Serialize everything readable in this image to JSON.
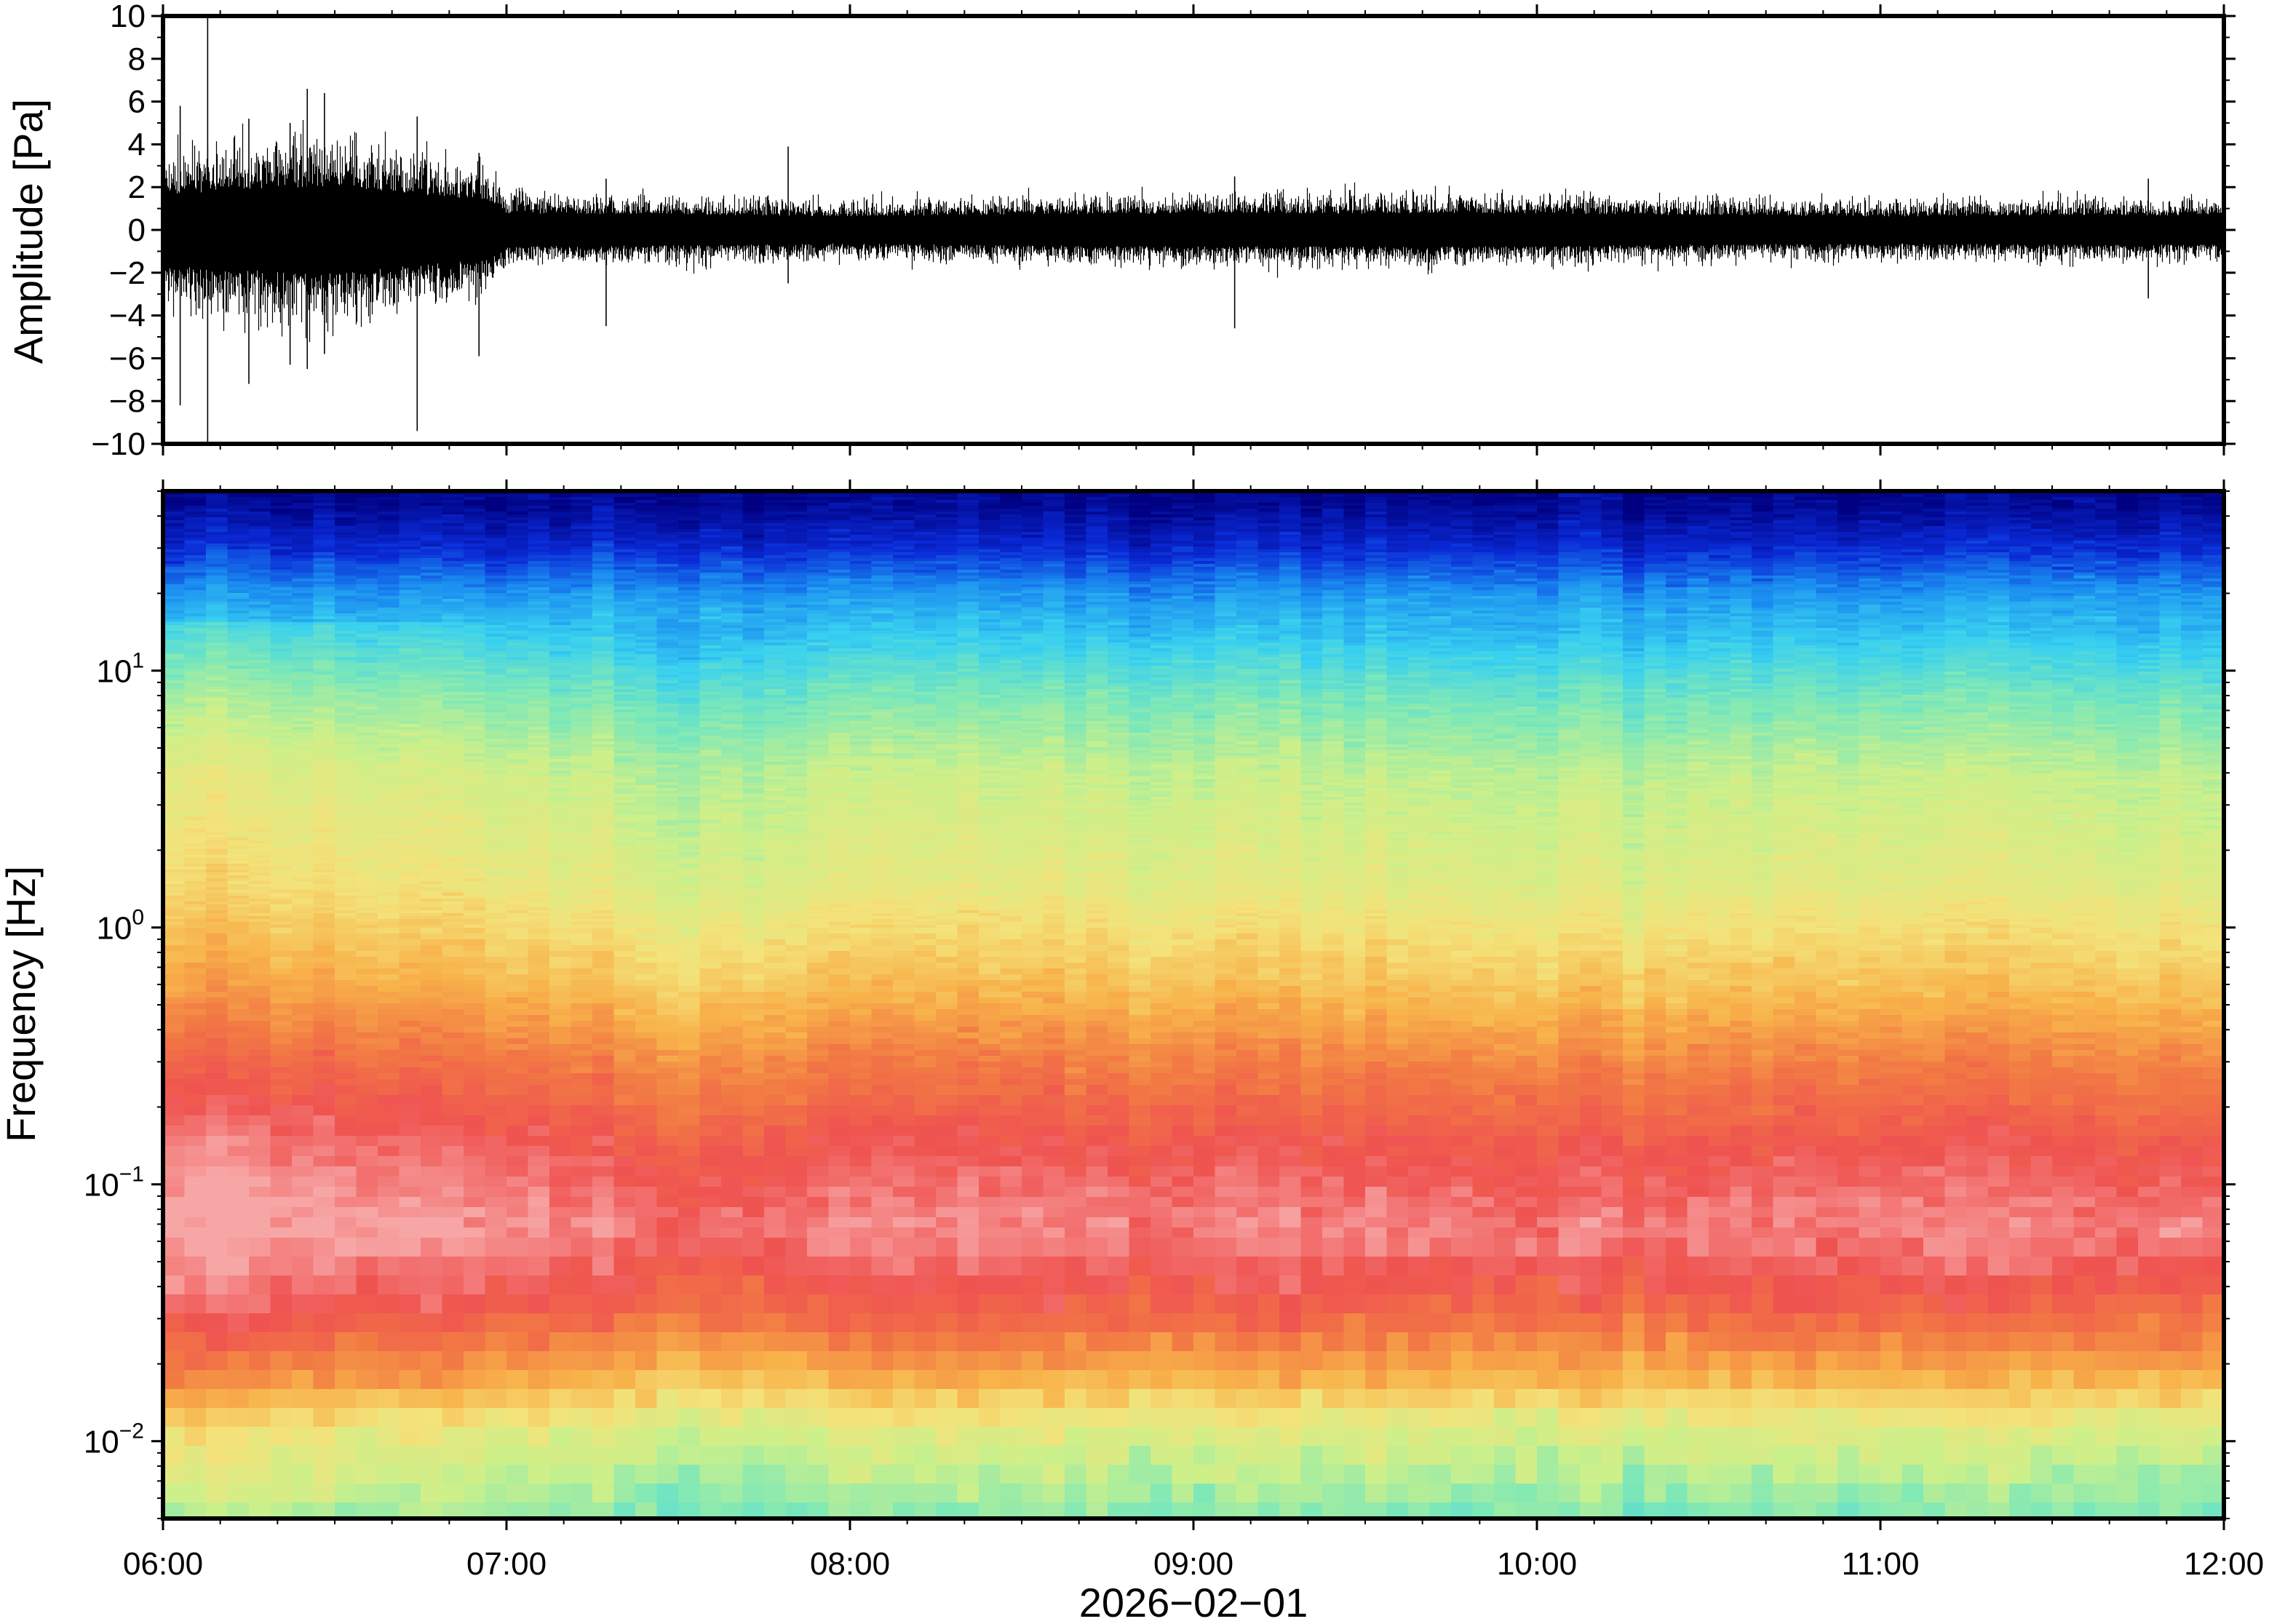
{
  "chart_data": [
    {
      "type": "line",
      "name": "waveform",
      "ylabel": "Amplitude [Pa]",
      "ylim": [
        -10,
        10
      ],
      "xlim": [
        "06:00",
        "12:00"
      ],
      "yticks": [
        {
          "value": 10,
          "label": "10"
        },
        {
          "value": 8,
          "label": "8"
        },
        {
          "value": 6,
          "label": "6"
        },
        {
          "value": 4,
          "label": "4"
        },
        {
          "value": 2,
          "label": "2"
        },
        {
          "value": 0,
          "label": "0"
        },
        {
          "value": -2,
          "label": "−2"
        },
        {
          "value": -4,
          "label": "−4"
        },
        {
          "value": -6,
          "label": "−6"
        },
        {
          "value": -8,
          "label": "−8"
        },
        {
          "value": -10,
          "label": "−10"
        }
      ],
      "grid": false,
      "envelope": [
        {
          "t": 0.0,
          "a": 3.6
        },
        {
          "t": 0.25,
          "a": 4.2
        },
        {
          "t": 0.5,
          "a": 4.5
        },
        {
          "t": 0.75,
          "a": 3.6
        },
        {
          "t": 0.95,
          "a": 3.0
        },
        {
          "t": 1.0,
          "a": 1.7
        },
        {
          "t": 1.5,
          "a": 1.6
        },
        {
          "t": 2.0,
          "a": 1.4
        },
        {
          "t": 2.5,
          "a": 1.6
        },
        {
          "t": 3.0,
          "a": 1.7
        },
        {
          "t": 3.5,
          "a": 1.7
        },
        {
          "t": 4.0,
          "a": 1.7
        },
        {
          "t": 4.5,
          "a": 1.5
        },
        {
          "t": 5.0,
          "a": 1.4
        },
        {
          "t": 5.5,
          "a": 1.5
        },
        {
          "t": 6.0,
          "a": 1.5
        }
      ],
      "spikes": [
        {
          "t": 0.13,
          "min": -10.0,
          "max": 10.0
        },
        {
          "t": 0.05,
          "min": -8.2,
          "max": 5.8
        },
        {
          "t": 0.25,
          "min": -7.2,
          "max": 5.2
        },
        {
          "t": 0.37,
          "min": -6.3,
          "max": 5.0
        },
        {
          "t": 0.42,
          "min": -6.5,
          "max": 6.6
        },
        {
          "t": 0.47,
          "min": -5.8,
          "max": 6.4
        },
        {
          "t": 0.74,
          "min": -9.4,
          "max": 5.3
        },
        {
          "t": 0.92,
          "min": -5.9,
          "max": 3.6
        },
        {
          "t": 1.29,
          "min": -4.5,
          "max": 2.4
        },
        {
          "t": 1.82,
          "min": -2.5,
          "max": 3.9
        },
        {
          "t": 3.12,
          "min": -4.6,
          "max": 2.5
        },
        {
          "t": 5.78,
          "min": -3.2,
          "max": 2.4
        }
      ]
    },
    {
      "type": "heatmap",
      "name": "spectrogram",
      "xlabel": "2026−02−01",
      "ylabel": "Frequency [Hz]",
      "yscale": "log",
      "ylim": [
        0.005,
        50
      ],
      "xlim": [
        "06:00",
        "12:00"
      ],
      "xticks": [
        "06:00",
        "07:00",
        "08:00",
        "09:00",
        "10:00",
        "11:00",
        "12:00"
      ],
      "yticks": [
        {
          "value": 10,
          "base": "10",
          "exp": "1"
        },
        {
          "value": 1,
          "base": "10",
          "exp": "0"
        },
        {
          "value": 0.1,
          "base": "10",
          "exp": "−1"
        },
        {
          "value": 0.01,
          "base": "10",
          "exp": "−2"
        }
      ],
      "colormap": [
        "#000080",
        "#0a2ad6",
        "#1a8cf0",
        "#38d0f0",
        "#7de8b8",
        "#cdf08a",
        "#f4e27a",
        "#f8b24a",
        "#f27a44",
        "#ef5350",
        "#f7a6a6"
      ],
      "profile": [
        {
          "f": 45,
          "level": 0.02
        },
        {
          "f": 30,
          "level": 0.1
        },
        {
          "f": 20,
          "level": 0.22
        },
        {
          "f": 12,
          "level": 0.32
        },
        {
          "f": 8,
          "level": 0.4
        },
        {
          "f": 4,
          "level": 0.5
        },
        {
          "f": 1.5,
          "level": 0.56
        },
        {
          "f": 0.6,
          "level": 0.68
        },
        {
          "f": 0.3,
          "level": 0.8
        },
        {
          "f": 0.15,
          "level": 0.9
        },
        {
          "f": 0.07,
          "level": 0.97
        },
        {
          "f": 0.035,
          "level": 0.86
        },
        {
          "f": 0.02,
          "level": 0.72
        },
        {
          "f": 0.012,
          "level": 0.55
        },
        {
          "f": 0.0055,
          "level": 0.42
        }
      ],
      "time_trend": [
        {
          "t": 0.0,
          "shift": 0.06
        },
        {
          "t": 1.0,
          "shift": 0.02
        },
        {
          "t": 1.5,
          "shift": -0.04
        },
        {
          "t": 2.0,
          "shift": 0.0
        },
        {
          "t": 3.0,
          "shift": 0.0
        },
        {
          "t": 4.0,
          "shift": -0.02
        },
        {
          "t": 5.0,
          "shift": 0.0
        },
        {
          "t": 6.0,
          "shift": -0.02
        }
      ]
    }
  ]
}
